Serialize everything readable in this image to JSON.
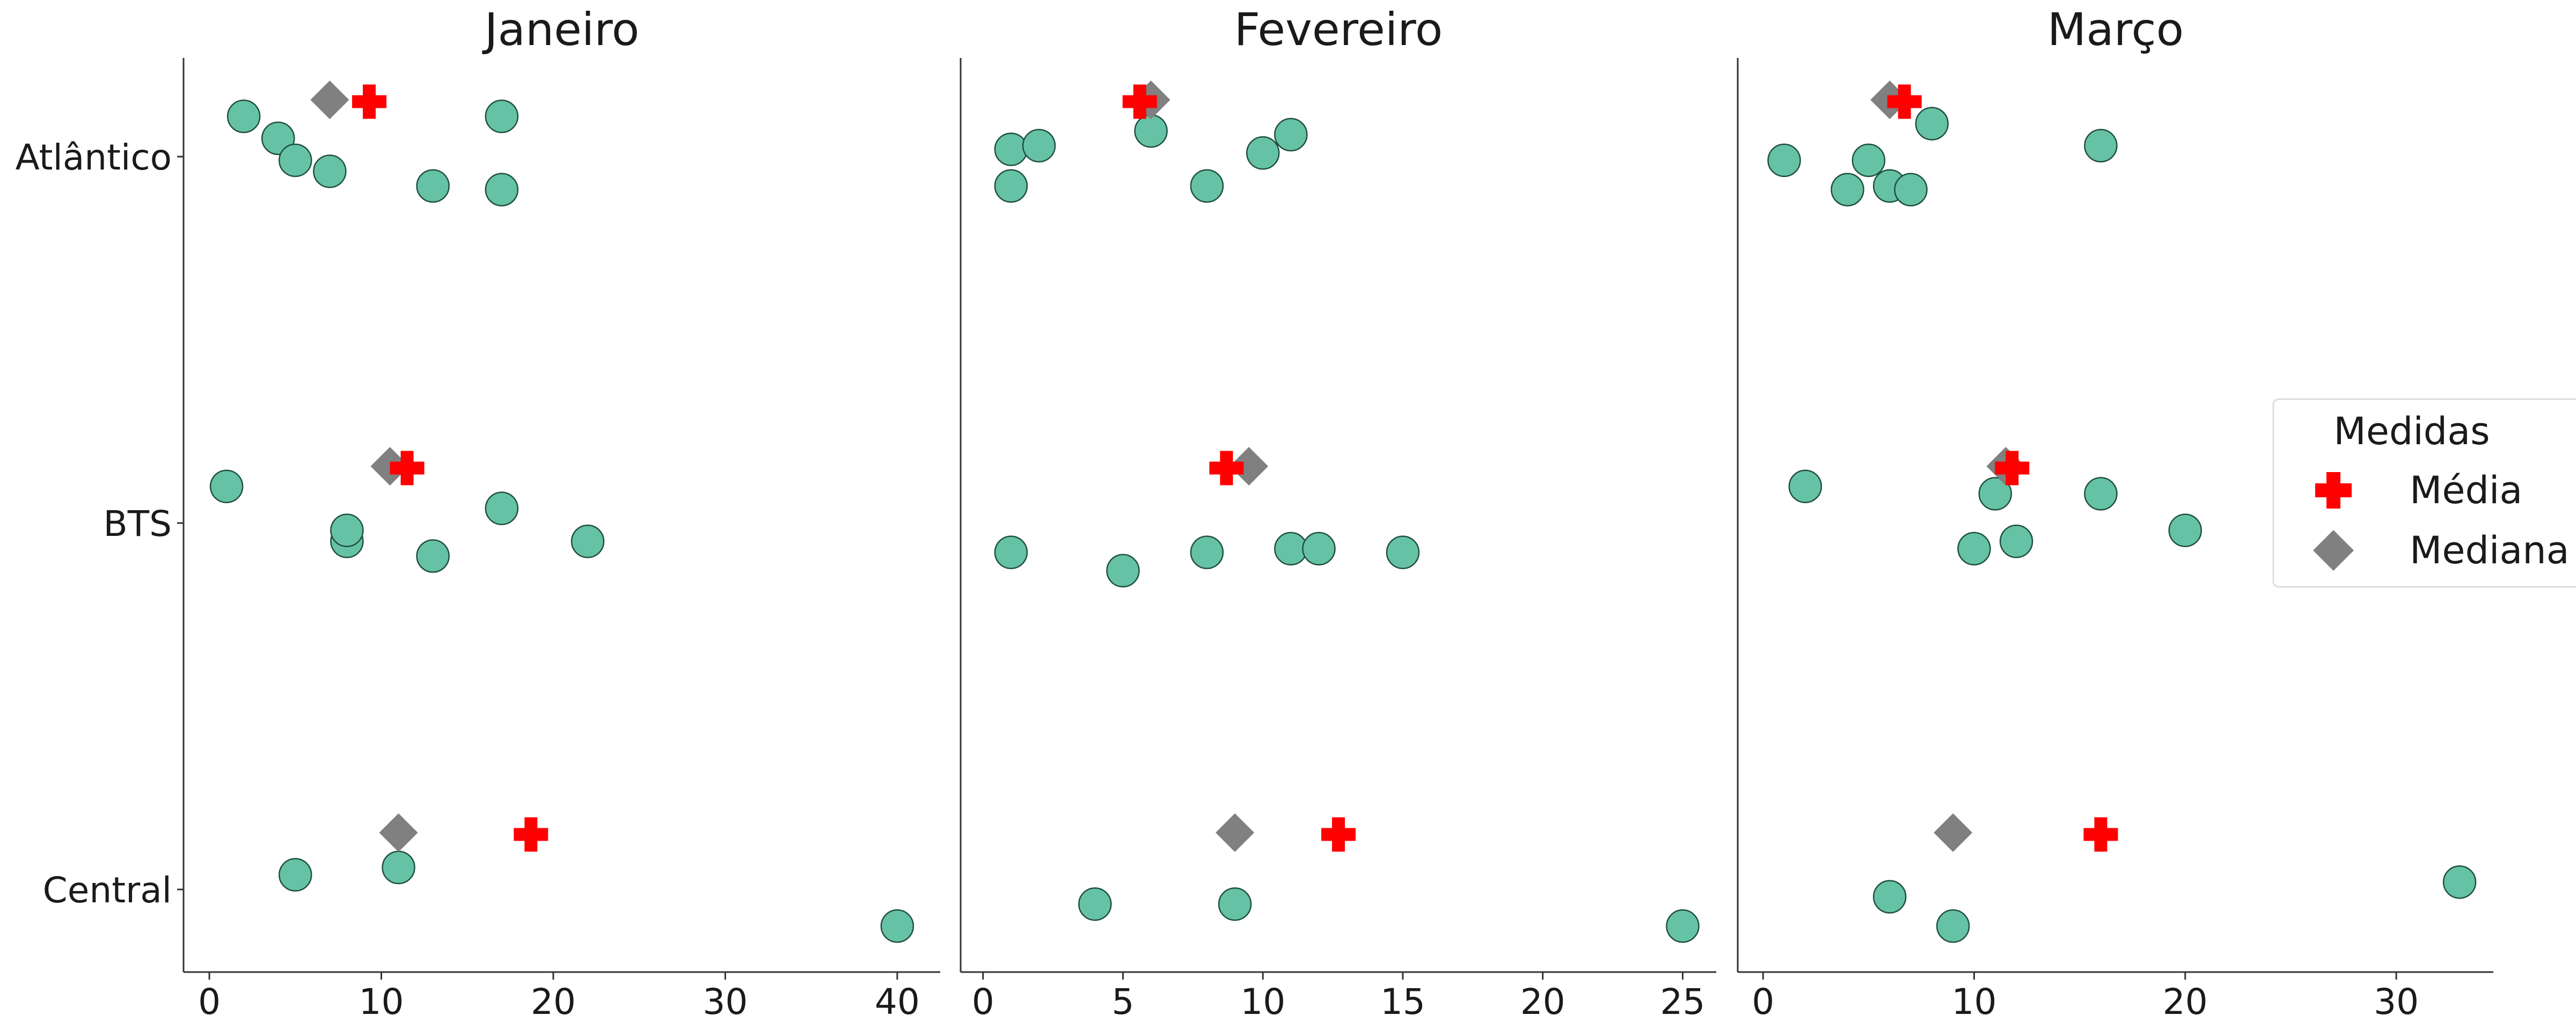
{
  "chart_data": {
    "type": "scatter",
    "facets": [
      {
        "title": "Janeiro",
        "xlim": [
          -1.5,
          42.5
        ],
        "xticks": [
          "0",
          "10",
          "20",
          "30",
          "40"
        ],
        "xtick_values": [
          0,
          10,
          20,
          30,
          40
        ],
        "groups": [
          {
            "category": "Atlântico",
            "points": [
              [
                2,
                0.11
              ],
              [
                4,
                0.05
              ],
              [
                5,
                -0.01
              ],
              [
                7,
                -0.04
              ],
              [
                13,
                -0.08
              ],
              [
                17,
                -0.09
              ],
              [
                17,
                0.11
              ]
            ],
            "mean": 9.3,
            "median": 7
          },
          {
            "category": "BTS",
            "points": [
              [
                1,
                0.1
              ],
              [
                8,
                -0.05
              ],
              [
                8,
                -0.02
              ],
              [
                13,
                -0.09
              ],
              [
                17,
                0.04
              ],
              [
                22,
                -0.05
              ]
            ],
            "mean": 11.5,
            "median": 10.5
          },
          {
            "category": "Central",
            "points": [
              [
                5,
                0.04
              ],
              [
                11,
                0.06
              ],
              [
                40,
                -0.1
              ]
            ],
            "mean": 18.7,
            "median": 11
          }
        ]
      },
      {
        "title": "Fevereiro",
        "xlim": [
          -0.8,
          26.2
        ],
        "xticks": [
          "0",
          "5",
          "10",
          "15",
          "20",
          "25"
        ],
        "xtick_values": [
          0,
          5,
          10,
          15,
          20,
          25
        ],
        "groups": [
          {
            "category": "Atlântico",
            "points": [
              [
                1,
                0.02
              ],
              [
                1,
                -0.08
              ],
              [
                2,
                0.03
              ],
              [
                6,
                0.07
              ],
              [
                8,
                -0.08
              ],
              [
                10,
                0.01
              ],
              [
                11,
                0.06
              ]
            ],
            "mean": 5.6,
            "median": 6
          },
          {
            "category": "BTS",
            "points": [
              [
                1,
                -0.08
              ],
              [
                5,
                -0.13
              ],
              [
                8,
                -0.08
              ],
              [
                11,
                -0.07
              ],
              [
                12,
                -0.07
              ],
              [
                15,
                -0.08
              ]
            ],
            "mean": 8.7,
            "median": 9.5
          },
          {
            "category": "Central",
            "points": [
              [
                4,
                -0.04
              ],
              [
                9,
                -0.04
              ],
              [
                25,
                -0.1
              ]
            ],
            "mean": 12.7,
            "median": 9
          }
        ]
      },
      {
        "title": "Março",
        "xlim": [
          -1.2,
          34.6
        ],
        "xticks": [
          "0",
          "10",
          "20",
          "30"
        ],
        "xtick_values": [
          0,
          10,
          20,
          30
        ],
        "groups": [
          {
            "category": "Atlântico",
            "points": [
              [
                1,
                -0.01
              ],
              [
                4,
                -0.09
              ],
              [
                5,
                -0.01
              ],
              [
                6,
                -0.08
              ],
              [
                7,
                -0.09
              ],
              [
                8,
                0.09
              ],
              [
                16,
                0.03
              ]
            ],
            "mean": 6.7,
            "median": 6
          },
          {
            "category": "BTS",
            "points": [
              [
                2,
                0.1
              ],
              [
                10,
                -0.07
              ],
              [
                11,
                0.08
              ],
              [
                12,
                -0.05
              ],
              [
                16,
                0.08
              ],
              [
                20,
                -0.02
              ]
            ],
            "mean": 11.8,
            "median": 11.5
          },
          {
            "category": "Central",
            "points": [
              [
                6,
                -0.02
              ],
              [
                9,
                -0.1
              ],
              [
                33,
                0.02
              ]
            ],
            "mean": 16.0,
            "median": 9
          }
        ]
      }
    ],
    "categories": [
      "Atlântico",
      "BTS",
      "Central"
    ],
    "ylim": [
      -0.25,
      2.25
    ],
    "legend": {
      "title": "Medidas",
      "entries": [
        {
          "label": "Média",
          "marker": "cross",
          "color": "#ff0000"
        },
        {
          "label": "Mediana",
          "marker": "diamond",
          "color": "#808080"
        }
      ],
      "placement": "right"
    },
    "colors": {
      "points": "#66c2a5",
      "point_edge": "#1f4f40",
      "mean": "#ff0000",
      "median": "#808080"
    }
  }
}
